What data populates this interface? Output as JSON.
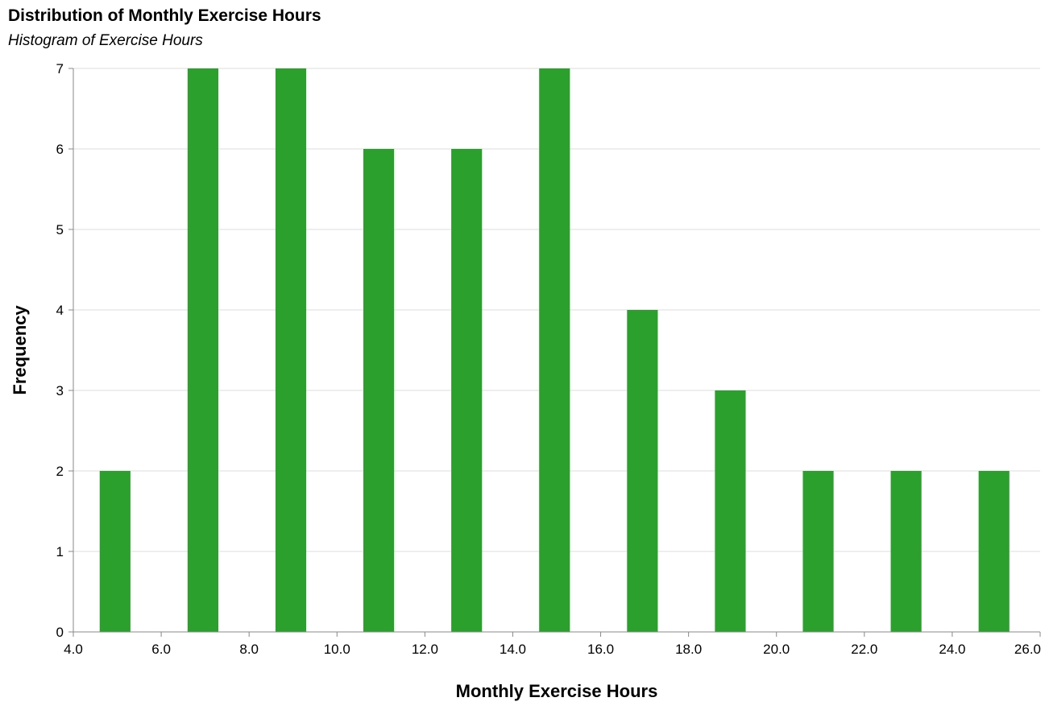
{
  "chart_data": {
    "type": "bar",
    "title": "Distribution of Monthly Exercise Hours",
    "subtitle": "Histogram of Exercise Hours",
    "xlabel": "Monthly Exercise Hours",
    "ylabel": "Frequency",
    "xlim": [
      4,
      26
    ],
    "ylim": [
      0,
      7
    ],
    "x_ticks": [
      "4.0",
      "6.0",
      "8.0",
      "10.0",
      "12.0",
      "14.0",
      "16.0",
      "18.0",
      "20.0",
      "22.0",
      "24.0",
      "26.0"
    ],
    "y_ticks": [
      "0",
      "1",
      "2",
      "3",
      "4",
      "5",
      "6",
      "7"
    ],
    "bins": [
      {
        "start": 4.6,
        "end": 5.3,
        "count": 2
      },
      {
        "start": 6.6,
        "end": 7.3,
        "count": 7
      },
      {
        "start": 8.6,
        "end": 9.3,
        "count": 7
      },
      {
        "start": 10.6,
        "end": 11.3,
        "count": 6
      },
      {
        "start": 12.6,
        "end": 13.3,
        "count": 6
      },
      {
        "start": 14.6,
        "end": 15.3,
        "count": 7
      },
      {
        "start": 16.6,
        "end": 17.3,
        "count": 4
      },
      {
        "start": 18.6,
        "end": 19.3,
        "count": 3
      },
      {
        "start": 20.6,
        "end": 21.3,
        "count": 2
      },
      {
        "start": 22.6,
        "end": 23.3,
        "count": 2
      },
      {
        "start": 24.6,
        "end": 25.3,
        "count": 2
      }
    ],
    "grid": true,
    "bar_color": "#2ca02c",
    "grid_color": "#dddddd",
    "axis_color": "#888888"
  }
}
